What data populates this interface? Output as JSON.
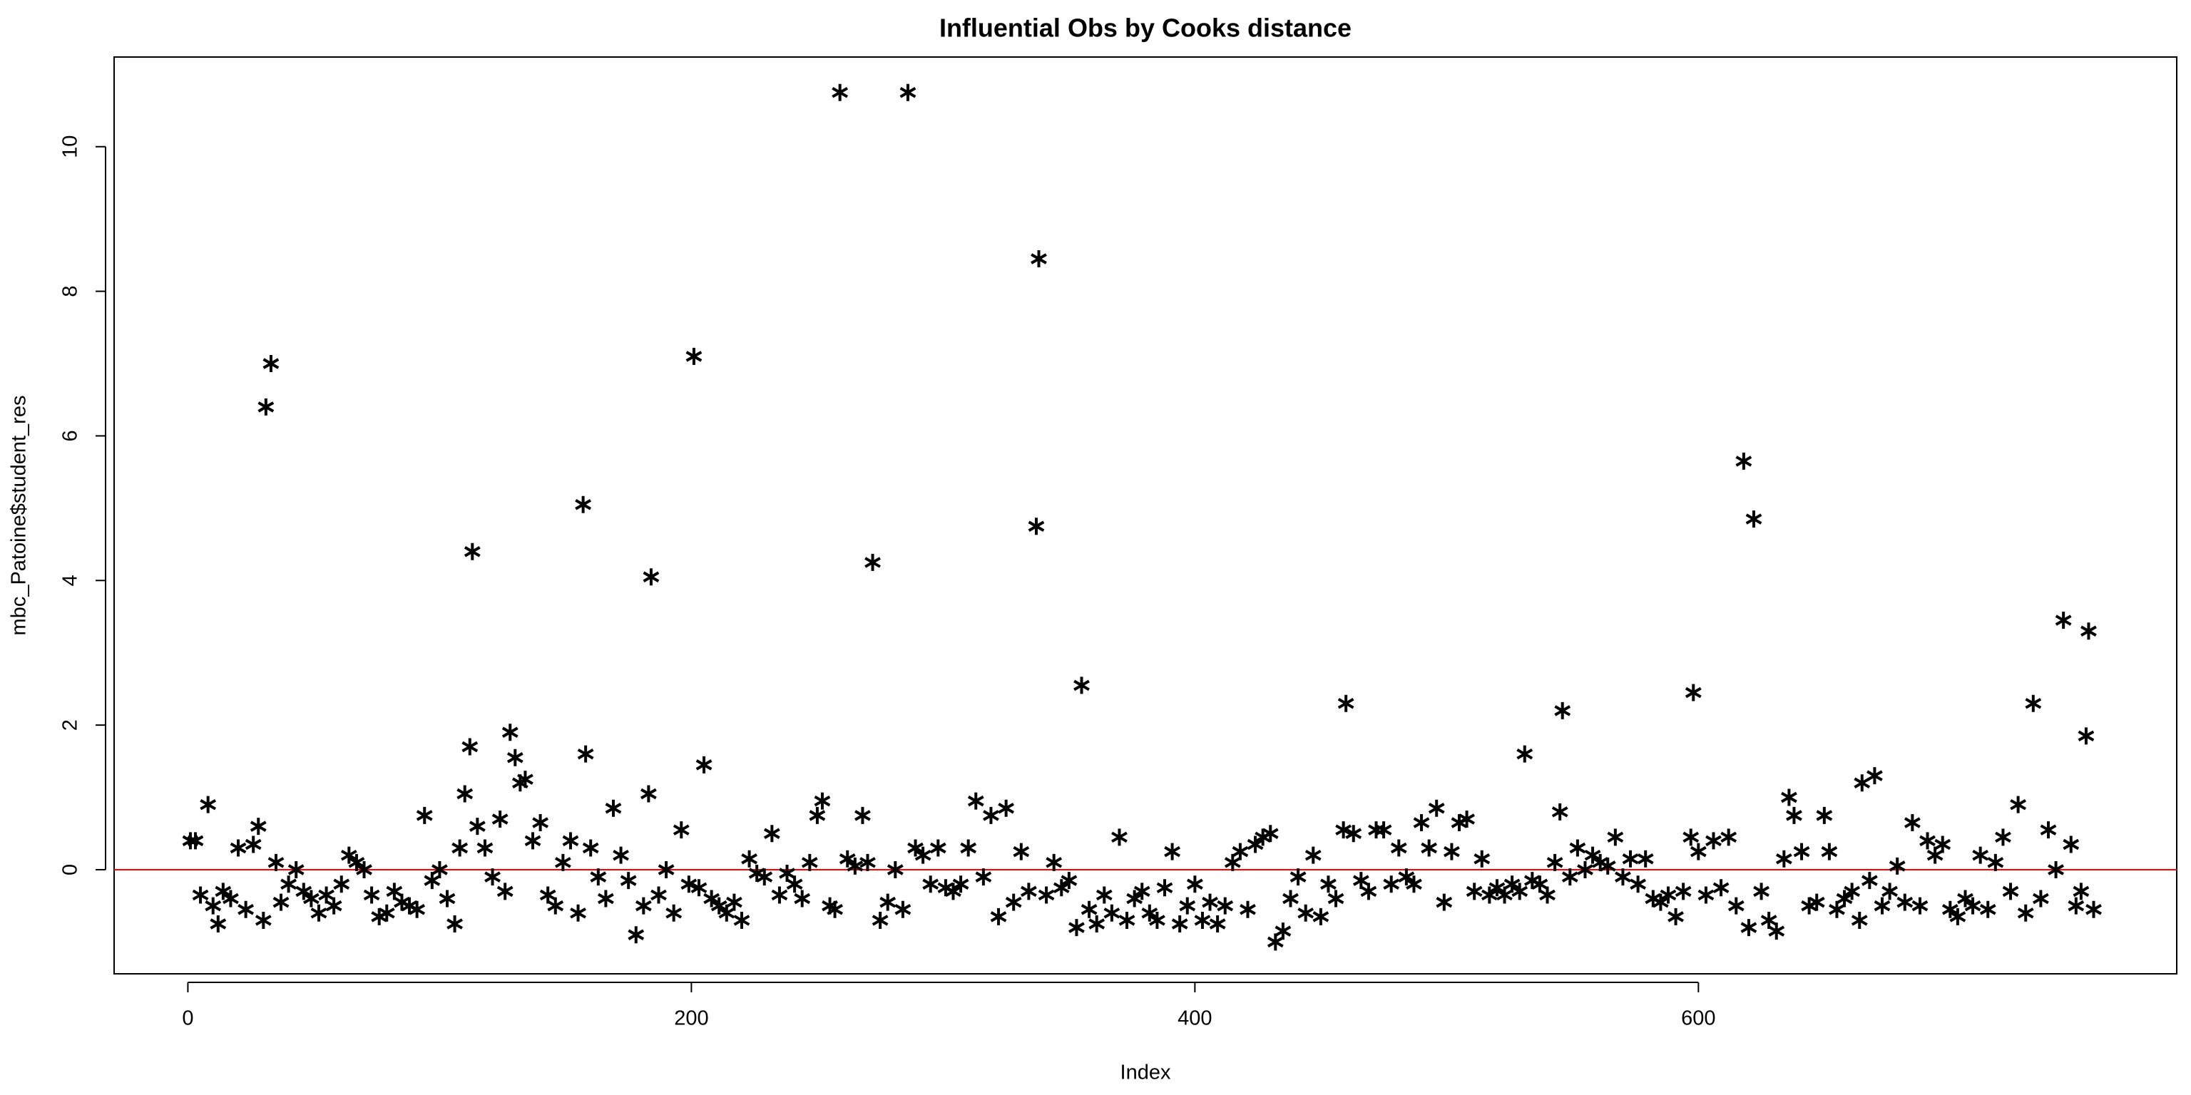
{
  "chart_data": {
    "type": "scatter",
    "title": "Influential Obs by Cooks distance",
    "x_label": "Index",
    "y_label": "mbc_Patoine$student_res",
    "color": "#000000",
    "hline": 0,
    "hline_color": "#ff0000",
    "xlim": [
      -29.3,
      790
    ],
    "ylim": [
      -1.44,
      11.24
    ],
    "xticks": [
      0,
      200,
      400,
      600
    ],
    "yticks": [
      0,
      2,
      4,
      6,
      8,
      10
    ],
    "x": [
      1,
      3,
      5,
      8,
      10,
      12,
      14,
      17,
      20,
      23,
      26,
      28,
      30,
      31,
      33,
      35,
      37,
      40,
      43,
      46,
      49,
      52,
      55,
      58,
      61,
      64,
      67,
      70,
      73,
      76,
      79,
      82,
      85,
      88,
      91,
      94,
      97,
      100,
      103,
      106,
      108,
      110,
      112,
      113,
      115,
      118,
      121,
      124,
      126,
      128,
      130,
      132,
      134,
      137,
      140,
      143,
      146,
      149,
      152,
      155,
      157,
      158,
      160,
      163,
      166,
      169,
      172,
      175,
      178,
      181,
      183,
      184,
      187,
      190,
      193,
      196,
      199,
      201,
      203,
      205,
      208,
      211,
      214,
      217,
      220,
      223,
      226,
      229,
      232,
      235,
      238,
      241,
      244,
      247,
      250,
      252,
      255,
      257,
      259,
      262,
      265,
      268,
      270,
      272,
      275,
      278,
      281,
      284,
      286,
      289,
      292,
      295,
      298,
      301,
      304,
      307,
      310,
      313,
      316,
      319,
      322,
      325,
      328,
      331,
      334,
      337,
      338,
      341,
      344,
      347,
      350,
      353,
      355,
      358,
      361,
      364,
      367,
      370,
      373,
      376,
      379,
      382,
      385,
      388,
      391,
      394,
      397,
      400,
      403,
      406,
      409,
      412,
      415,
      418,
      421,
      424,
      427,
      430,
      432,
      435,
      438,
      441,
      444,
      447,
      450,
      453,
      456,
      459,
      460,
      463,
      466,
      469,
      472,
      475,
      478,
      481,
      484,
      487,
      490,
      493,
      496,
      499,
      502,
      505,
      508,
      511,
      514,
      517,
      520,
      523,
      526,
      529,
      531,
      534,
      537,
      540,
      543,
      545,
      546,
      549,
      552,
      555,
      558,
      561,
      564,
      567,
      570,
      573,
      576,
      579,
      582,
      585,
      588,
      591,
      594,
      597,
      598,
      600,
      603,
      606,
      609,
      612,
      615,
      618,
      620,
      622,
      625,
      628,
      631,
      634,
      636,
      638,
      641,
      644,
      647,
      650,
      652,
      655,
      658,
      661,
      664,
      665,
      668,
      670,
      673,
      676,
      679,
      682,
      685,
      688,
      691,
      694,
      697,
      700,
      703,
      706,
      709,
      712,
      715,
      718,
      721,
      724,
      727,
      730,
      733,
      736,
      739,
      742,
      745,
      748,
      750,
      752,
      754,
      755,
      757
    ],
    "values": [
      0.4,
      0.4,
      -0.35,
      0.9,
      -0.5,
      -0.75,
      -0.3,
      -0.4,
      0.3,
      -0.55,
      0.35,
      0.6,
      -0.7,
      6.4,
      7.0,
      0.1,
      -0.45,
      -0.2,
      0.0,
      -0.3,
      -0.4,
      -0.6,
      -0.35,
      -0.5,
      -0.2,
      0.2,
      0.1,
      0.0,
      -0.35,
      -0.65,
      -0.6,
      -0.3,
      -0.45,
      -0.5,
      -0.55,
      0.75,
      -0.15,
      0.0,
      -0.4,
      -0.75,
      0.3,
      1.05,
      1.7,
      4.4,
      0.6,
      0.3,
      -0.1,
      0.7,
      -0.3,
      1.9,
      1.55,
      1.2,
      1.25,
      0.4,
      0.65,
      -0.35,
      -0.5,
      0.1,
      0.4,
      -0.6,
      5.05,
      1.6,
      0.3,
      -0.1,
      -0.4,
      0.85,
      0.2,
      -0.15,
      -0.9,
      -0.5,
      1.05,
      4.05,
      -0.35,
      0.0,
      -0.6,
      0.55,
      -0.2,
      7.1,
      -0.25,
      1.45,
      -0.4,
      -0.5,
      -0.6,
      -0.45,
      -0.7,
      0.15,
      -0.05,
      -0.1,
      0.5,
      -0.35,
      -0.05,
      -0.2,
      -0.4,
      0.1,
      0.75,
      0.95,
      -0.5,
      -0.55,
      10.75,
      0.15,
      0.05,
      0.75,
      0.1,
      4.25,
      -0.7,
      -0.45,
      0.0,
      -0.55,
      10.75,
      0.3,
      0.2,
      -0.2,
      0.3,
      -0.25,
      -0.3,
      -0.2,
      0.3,
      0.95,
      -0.1,
      0.75,
      -0.65,
      0.85,
      -0.45,
      0.25,
      -0.3,
      4.75,
      8.45,
      -0.35,
      0.1,
      -0.25,
      -0.15,
      -0.8,
      2.55,
      -0.55,
      -0.75,
      -0.35,
      -0.6,
      0.45,
      -0.7,
      -0.4,
      -0.3,
      -0.6,
      -0.7,
      -0.25,
      0.25,
      -0.75,
      -0.5,
      -0.2,
      -0.7,
      -0.45,
      -0.75,
      -0.5,
      0.1,
      0.25,
      -0.55,
      0.35,
      0.45,
      0.5,
      -1.0,
      -0.85,
      -0.4,
      -0.1,
      -0.6,
      0.2,
      -0.65,
      -0.2,
      -0.4,
      0.55,
      2.3,
      0.5,
      -0.15,
      -0.3,
      0.55,
      0.55,
      -0.2,
      0.3,
      -0.1,
      -0.2,
      0.65,
      0.3,
      0.85,
      -0.45,
      0.25,
      0.65,
      0.7,
      -0.3,
      0.15,
      -0.35,
      -0.25,
      -0.35,
      -0.2,
      -0.3,
      1.6,
      -0.15,
      -0.2,
      -0.35,
      0.1,
      0.8,
      2.2,
      -0.1,
      0.3,
      0.0,
      0.2,
      0.1,
      0.05,
      0.45,
      -0.1,
      0.15,
      -0.2,
      0.15,
      -0.4,
      -0.45,
      -0.35,
      -0.65,
      -0.3,
      0.45,
      2.45,
      0.25,
      -0.35,
      0.4,
      -0.25,
      0.45,
      -0.5,
      5.65,
      -0.8,
      4.85,
      -0.3,
      -0.7,
      -0.85,
      0.15,
      1.0,
      0.75,
      0.25,
      -0.5,
      -0.45,
      0.75,
      0.25,
      -0.55,
      -0.4,
      -0.3,
      -0.7,
      1.2,
      -0.15,
      1.3,
      -0.5,
      -0.3,
      0.05,
      -0.45,
      0.65,
      -0.5,
      0.4,
      0.2,
      0.35,
      -0.55,
      -0.65,
      -0.4,
      -0.5,
      0.2,
      -0.55,
      0.1,
      0.45,
      -0.3,
      0.9,
      -0.6,
      2.3,
      -0.4,
      0.55,
      0.0,
      3.45,
      0.35,
      -0.5,
      -0.3,
      1.85,
      3.3,
      -0.55
    ]
  }
}
